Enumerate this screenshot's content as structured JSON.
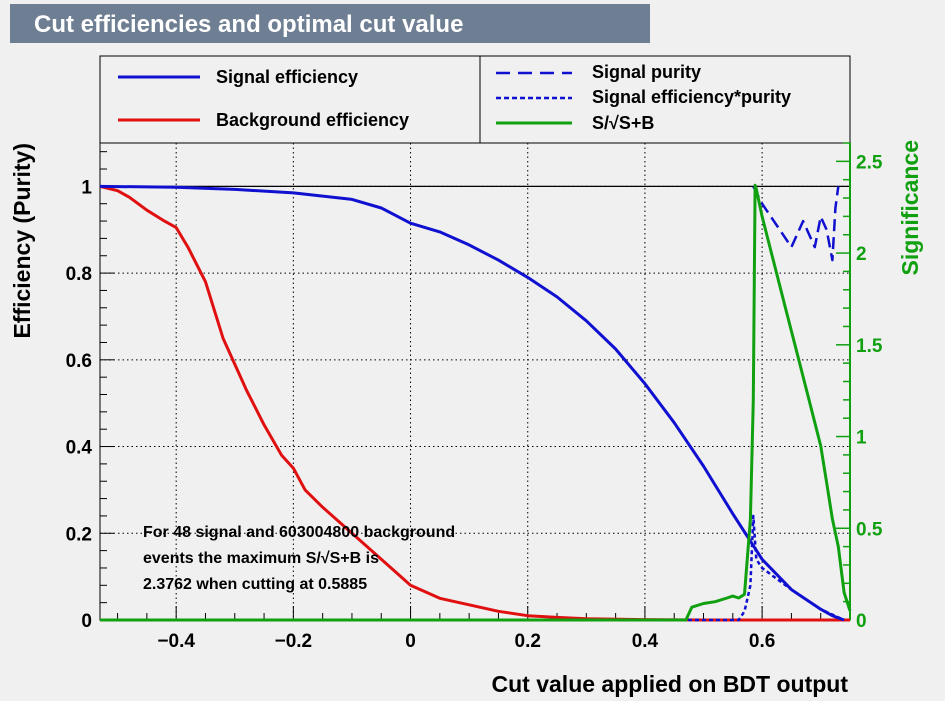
{
  "title": "Cut efficiencies and optimal cut value",
  "chart_data": {
    "type": "line",
    "title": "Cut efficiencies and optimal cut value",
    "xlabel": "Cut value applied on BDT output",
    "ylabel": "Efficiency (Purity)",
    "ylabel_right": "Significance",
    "xlim": [
      -0.53,
      0.75
    ],
    "ylim": [
      0,
      1.1
    ],
    "ylim_right": [
      0,
      2.6
    ],
    "x_ticks": [
      -0.4,
      -0.2,
      0,
      0.2,
      0.4,
      0.6
    ],
    "x_tick_labels": [
      "−0.4",
      "−0.2",
      "0",
      "0.2",
      "0.4",
      "0.6"
    ],
    "y_ticks": [
      0,
      0.2,
      0.4,
      0.6,
      0.8,
      1
    ],
    "y_tick_labels": [
      "0",
      "0.2",
      "0.4",
      "0.6",
      "0.8",
      "1"
    ],
    "y_right_ticks": [
      0,
      0.5,
      1,
      1.5,
      2,
      2.5
    ],
    "y_right_tick_labels": [
      "0",
      "0.5",
      "1",
      "1.5",
      "2",
      "2.5"
    ],
    "grid": true,
    "legend_position": "top",
    "series": [
      {
        "name": "Signal efficiency",
        "axis": "left",
        "color": "#1010d0",
        "style": "solid",
        "x": [
          -0.53,
          -0.4,
          -0.3,
          -0.2,
          -0.1,
          -0.05,
          0,
          0.05,
          0.1,
          0.15,
          0.2,
          0.25,
          0.3,
          0.35,
          0.4,
          0.45,
          0.5,
          0.55,
          0.6,
          0.65,
          0.7,
          0.72,
          0.74
        ],
        "values": [
          1.0,
          0.998,
          0.993,
          0.985,
          0.97,
          0.95,
          0.915,
          0.895,
          0.865,
          0.83,
          0.79,
          0.745,
          0.69,
          0.625,
          0.545,
          0.455,
          0.355,
          0.245,
          0.14,
          0.07,
          0.025,
          0.01,
          0.0
        ]
      },
      {
        "name": "Background efficiency",
        "axis": "left",
        "color": "#e01010",
        "style": "solid",
        "x": [
          -0.53,
          -0.5,
          -0.48,
          -0.45,
          -0.42,
          -0.4,
          -0.38,
          -0.35,
          -0.32,
          -0.3,
          -0.28,
          -0.25,
          -0.22,
          -0.2,
          -0.18,
          -0.15,
          -0.1,
          -0.05,
          0,
          0.05,
          0.1,
          0.15,
          0.2,
          0.25,
          0.3,
          0.4,
          0.5,
          0.6,
          0.75
        ],
        "values": [
          1.0,
          0.99,
          0.975,
          0.945,
          0.92,
          0.905,
          0.86,
          0.78,
          0.65,
          0.59,
          0.53,
          0.45,
          0.38,
          0.35,
          0.3,
          0.26,
          0.2,
          0.14,
          0.08,
          0.05,
          0.035,
          0.02,
          0.01,
          0.006,
          0.003,
          0.001,
          0.0,
          0.0,
          0.0
        ]
      },
      {
        "name": "Signal purity",
        "axis": "left",
        "color": "#1010d0",
        "style": "long-dash",
        "x": [
          0.585,
          0.6,
          0.61,
          0.63,
          0.65,
          0.67,
          0.69,
          0.7,
          0.71,
          0.72,
          0.725,
          0.73
        ],
        "values": [
          1.0,
          0.96,
          0.94,
          0.9,
          0.86,
          0.92,
          0.86,
          0.93,
          0.9,
          0.83,
          0.95,
          1.0
        ]
      },
      {
        "name": "Signal efficiency*purity",
        "axis": "left",
        "color": "#1010d0",
        "style": "short-dash",
        "x": [
          -0.53,
          0.56,
          0.57,
          0.575,
          0.58,
          0.585,
          0.59,
          0.6,
          0.65,
          0.7,
          0.74
        ],
        "values": [
          0.0,
          0.0,
          0.02,
          0.05,
          0.08,
          0.24,
          0.14,
          0.12,
          0.07,
          0.025,
          0.0
        ]
      },
      {
        "name": "S/√S+B",
        "axis": "right",
        "color": "#10a010",
        "style": "solid",
        "x": [
          -0.53,
          0.47,
          0.48,
          0.5,
          0.52,
          0.54,
          0.55,
          0.56,
          0.57,
          0.58,
          0.585,
          0.588,
          0.59,
          0.6,
          0.62,
          0.64,
          0.66,
          0.68,
          0.7,
          0.71,
          0.72,
          0.73,
          0.74,
          0.75
        ],
        "values": [
          0.0,
          0.0,
          0.07,
          0.09,
          0.1,
          0.12,
          0.13,
          0.12,
          0.14,
          0.55,
          1.2,
          2.37,
          2.35,
          2.2,
          1.95,
          1.7,
          1.45,
          1.2,
          0.95,
          0.75,
          0.55,
          0.4,
          0.15,
          0.05
        ]
      }
    ],
    "annotation": {
      "line1": "For 48 signal and 603004800 background",
      "line2": "events the maximum S/√S+B is",
      "line3": "2.3762 when cutting at 0.5885"
    }
  }
}
